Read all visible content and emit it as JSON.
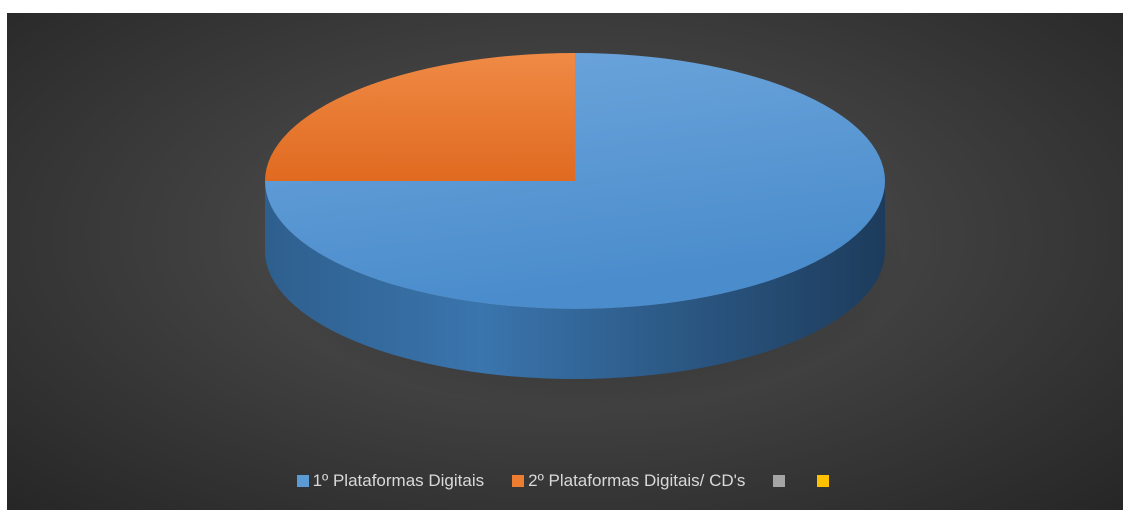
{
  "chart_data": {
    "type": "pie",
    "style": "3d",
    "title": "",
    "categories": [
      "1º Plataformas Digitais",
      "2º Plataformas Digitais/ CD's",
      "",
      ""
    ],
    "values": [
      75,
      25,
      0,
      0
    ],
    "colors": [
      "#5b9bd5",
      "#ed7d31",
      "#a5a5a5",
      "#ffc000"
    ],
    "legend_position": "bottom"
  }
}
